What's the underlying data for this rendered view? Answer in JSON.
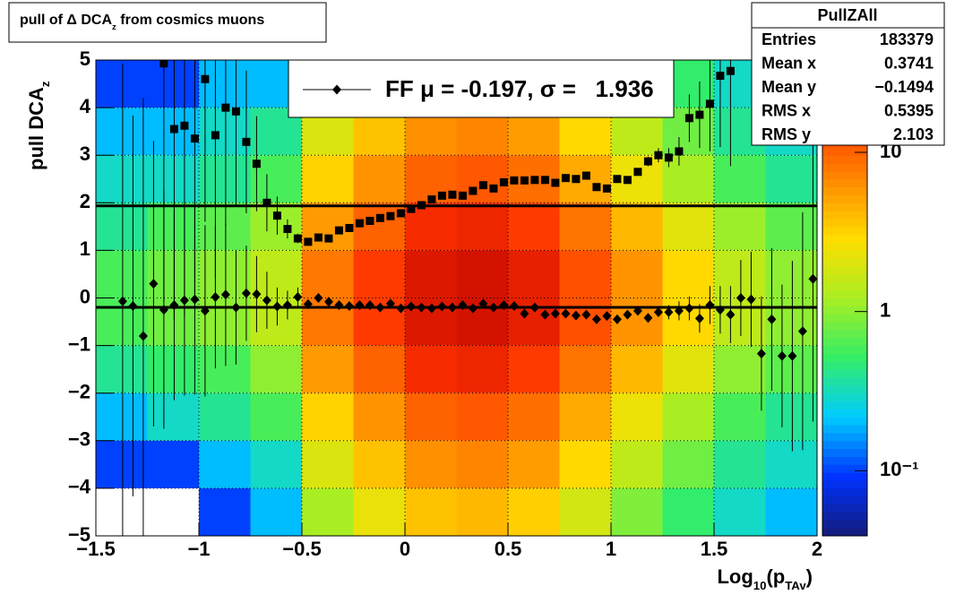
{
  "chart_data": {
    "type": "profile",
    "title": [
      {
        "text": "pull of Δ DCA"
      },
      {
        "text": "z",
        "sub": true
      },
      {
        "text": " from cosmics muons"
      }
    ],
    "ylabel": [
      {
        "text": "pull DCA"
      },
      {
        "text": "z",
        "sub": true
      }
    ],
    "xlabel": [
      {
        "text": "Log"
      },
      {
        "text": "10",
        "sub": true
      },
      {
        "text": "(p"
      },
      {
        "text": "TAv",
        "sub": true
      },
      {
        "text": ")"
      }
    ],
    "xlim": [
      -1.5,
      2
    ],
    "ylim": [
      -5,
      5
    ],
    "xticks": [
      {
        "value": -1.5,
        "label": "−1.5"
      },
      {
        "value": -1,
        "label": "−1"
      },
      {
        "value": -0.5,
        "label": "−0.5"
      },
      0,
      0.5,
      1,
      1.5,
      2
    ],
    "yticks": [
      {
        "value": -5,
        "label": "−5"
      },
      {
        "value": -4,
        "label": "−4"
      },
      {
        "value": -3,
        "label": "−3"
      },
      {
        "value": -2,
        "label": "−2"
      },
      {
        "value": -1,
        "label": "−1"
      },
      0,
      1,
      2,
      3,
      4,
      5
    ],
    "grid": true,
    "zlim": [
      0.039,
      38
    ],
    "zlog": true,
    "zticks": [
      {
        "value": 10,
        "label": "10"
      },
      {
        "value": 1,
        "label": "1"
      },
      {
        "value": 0.1,
        "label": "10⁻¹"
      }
    ],
    "palette": [
      "#141a78",
      "#0033ff",
      "#00ccff",
      "#33ee66",
      "#aaee22",
      "#ffdd00",
      "#ff8800",
      "#ff3300",
      "#bb0000"
    ],
    "heatmap": {
      "xbins": [
        -1.5,
        -1.25,
        -1,
        -0.75,
        -0.5,
        -0.25,
        0,
        0.25,
        0.5,
        0.75,
        1,
        1.25,
        1.5,
        1.75,
        2
      ],
      "ybins": [
        5,
        4,
        3,
        2,
        1,
        0,
        -1,
        -2,
        -3,
        -4,
        -5
      ],
      "z": [
        [
          0.1,
          0.1,
          0.2,
          0.2,
          1.2,
          2.3,
          3.8,
          4.2,
          3.3,
          1.8,
          0.9,
          0.5,
          0.3,
          0.2
        ],
        [
          0.2,
          0.2,
          0.3,
          0.4,
          2,
          3.8,
          6.3,
          7,
          5.5,
          3,
          1.5,
          0.8,
          0.4,
          0.3
        ],
        [
          0.3,
          0.3,
          0.4,
          0.6,
          3.2,
          6,
          10,
          11,
          8.8,
          4.8,
          2.4,
          1.2,
          0.6,
          0.4
        ],
        [
          0.4,
          0.6,
          0.7,
          1.1,
          5.6,
          10,
          18,
          20,
          15,
          8.4,
          4.2,
          2.1,
          1.1,
          0.7
        ],
        [
          0.6,
          0.8,
          1,
          1.5,
          8,
          15,
          25,
          28,
          22,
          12,
          6,
          3,
          1.5,
          1
        ],
        [
          0.6,
          0.8,
          1,
          1.5,
          8,
          15,
          25,
          28,
          22,
          12,
          6,
          3,
          1.5,
          1
        ],
        [
          0.4,
          0.5,
          0.6,
          1,
          5.6,
          10,
          18,
          20,
          15,
          8.4,
          4.2,
          2.1,
          1,
          0.7
        ],
        [
          0.2,
          0.3,
          0.4,
          0.6,
          3.2,
          6,
          10,
          11,
          8.8,
          4.8,
          2.4,
          1.2,
          0.6,
          0.4
        ],
        [
          0.1,
          0.1,
          0.2,
          0.3,
          2,
          3.8,
          6.3,
          7,
          5.5,
          3,
          1.5,
          0.8,
          0.4,
          0.3
        ],
        [
          0,
          0,
          0.1,
          0.2,
          1.2,
          2.3,
          3.8,
          4.2,
          3.3,
          1.8,
          0.9,
          0.5,
          0.3,
          0.2
        ]
      ]
    },
    "series": [
      {
        "marker": "diamond",
        "color": "#000000",
        "x": [
          -1.37,
          -1.32,
          -1.27,
          -1.22,
          -1.17,
          -1.12,
          -1.07,
          -1.02,
          -0.97,
          -0.92,
          -0.87,
          -0.82,
          -0.77,
          -0.72,
          -0.67,
          -0.62,
          -0.57,
          -0.52,
          -0.47,
          -0.42,
          -0.37,
          -0.32,
          -0.27,
          -0.22,
          -0.17,
          -0.12,
          -0.07,
          -0.02,
          0.03,
          0.08,
          0.13,
          0.18,
          0.23,
          0.28,
          0.33,
          0.38,
          0.43,
          0.48,
          0.53,
          0.58,
          0.63,
          0.68,
          0.73,
          0.78,
          0.83,
          0.88,
          0.93,
          0.98,
          1.03,
          1.08,
          1.13,
          1.18,
          1.23,
          1.28,
          1.33,
          1.38,
          1.43,
          1.48,
          1.53,
          1.58,
          1.63,
          1.68,
          1.73,
          1.78,
          1.83,
          1.88,
          1.93,
          1.98
        ],
        "values": [
          -0.07,
          -0.17,
          -0.8,
          0.3,
          -0.25,
          -0.15,
          -0.05,
          -0.03,
          -0.27,
          0.02,
          0.07,
          -0.2,
          0.1,
          0.08,
          -0.05,
          -0.18,
          -0.15,
          0.02,
          -0.13,
          0.0,
          -0.08,
          -0.15,
          -0.17,
          -0.15,
          -0.15,
          -0.2,
          -0.12,
          -0.22,
          -0.18,
          -0.2,
          -0.22,
          -0.18,
          -0.2,
          -0.15,
          -0.22,
          -0.12,
          -0.2,
          -0.15,
          -0.17,
          -0.33,
          -0.2,
          -0.35,
          -0.33,
          -0.33,
          -0.37,
          -0.35,
          -0.45,
          -0.38,
          -0.45,
          -0.35,
          -0.27,
          -0.42,
          -0.3,
          -0.3,
          -0.27,
          -0.22,
          -0.43,
          -0.15,
          -0.25,
          -0.35,
          0.0,
          -0.03,
          -1.17,
          -0.45,
          -1.22,
          -1.22,
          -0.7,
          0.4
        ],
        "errors": [
          5,
          4,
          5,
          3,
          2.5,
          2,
          2,
          2,
          1.8,
          1.5,
          1.5,
          1.2,
          1,
          0.8,
          0.6,
          0.4,
          0.3,
          0.2,
          0.1,
          0.08,
          0.05,
          0.05,
          0.05,
          0.05,
          0.05,
          0.05,
          0.05,
          0.05,
          0.05,
          0.05,
          0.05,
          0.05,
          0.05,
          0.05,
          0.05,
          0.05,
          0.05,
          0.05,
          0.05,
          0.05,
          0.05,
          0.05,
          0.05,
          0.05,
          0.05,
          0.05,
          0.05,
          0.05,
          0.05,
          0.05,
          0.08,
          0.1,
          0.1,
          0.15,
          0.2,
          0.25,
          0.3,
          0.4,
          0.5,
          0.6,
          0.8,
          1,
          1.2,
          1.5,
          1.5,
          2,
          2.5,
          3
        ]
      },
      {
        "marker": "square",
        "color": "#000000",
        "x": [
          -1.17,
          -1.12,
          -1.07,
          -1.02,
          -0.97,
          -0.92,
          -0.87,
          -0.82,
          -0.77,
          -0.72,
          -0.67,
          -0.62,
          -0.57,
          -0.52,
          -0.47,
          -0.42,
          -0.37,
          -0.32,
          -0.27,
          -0.22,
          -0.17,
          -0.12,
          -0.07,
          -0.02,
          0.03,
          0.08,
          0.13,
          0.18,
          0.23,
          0.28,
          0.33,
          0.38,
          0.43,
          0.48,
          0.53,
          0.58,
          0.63,
          0.68,
          0.73,
          0.78,
          0.83,
          0.88,
          0.93,
          0.98,
          1.03,
          1.08,
          1.13,
          1.18,
          1.23,
          1.28,
          1.33,
          1.38,
          1.43,
          1.48,
          1.53,
          1.58
        ],
        "values": [
          4.93,
          3.55,
          3.62,
          3.35,
          4.6,
          3.42,
          4.0,
          3.92,
          3.28,
          2.82,
          2.0,
          1.73,
          1.45,
          1.25,
          1.18,
          1.27,
          1.25,
          1.42,
          1.47,
          1.57,
          1.62,
          1.68,
          1.72,
          1.78,
          1.87,
          1.95,
          2.07,
          2.15,
          2.17,
          2.15,
          2.25,
          2.37,
          2.3,
          2.43,
          2.47,
          2.47,
          2.48,
          2.48,
          2.42,
          2.52,
          2.5,
          2.57,
          2.33,
          2.3,
          2.5,
          2.48,
          2.65,
          2.87,
          3.0,
          2.95,
          3.08,
          3.78,
          3.85,
          4.08,
          4.67,
          4.77
        ],
        "errors": [
          5,
          4,
          4,
          3.5,
          3,
          3,
          2.5,
          2,
          1.5,
          1,
          0.6,
          0.4,
          0.2,
          0.1,
          0.08,
          0.05,
          0.05,
          0.05,
          0.05,
          0.05,
          0.05,
          0.05,
          0.05,
          0.05,
          0.05,
          0.05,
          0.05,
          0.05,
          0.05,
          0.05,
          0.05,
          0.05,
          0.05,
          0.05,
          0.05,
          0.05,
          0.05,
          0.05,
          0.05,
          0.05,
          0.05,
          0.05,
          0.05,
          0.05,
          0.05,
          0.05,
          0.08,
          0.1,
          0.15,
          0.2,
          0.3,
          0.5,
          0.7,
          1,
          1.5,
          2
        ]
      }
    ],
    "fit": {
      "mu": -0.197,
      "sigma": 1.936
    },
    "legend": {
      "label": "FF μ = -0.197, σ =   1.936",
      "marker": "diamond"
    },
    "stats": {
      "title": "PullZAll",
      "rows": [
        {
          "name": "Entries",
          "value": "183379"
        },
        {
          "name": "Mean x",
          "value": "0.3741"
        },
        {
          "name": "Mean y",
          "value": "−0.1494"
        },
        {
          "name": "RMS x",
          "value": "0.5395"
        },
        {
          "name": "RMS y",
          "value": "2.103"
        }
      ]
    }
  }
}
